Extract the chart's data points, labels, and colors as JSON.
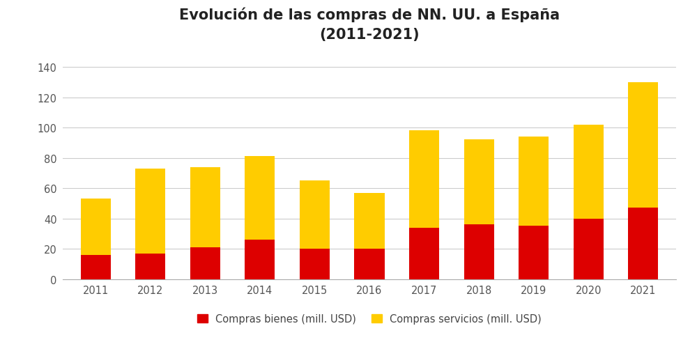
{
  "years": [
    2011,
    2012,
    2013,
    2014,
    2015,
    2016,
    2017,
    2018,
    2019,
    2020,
    2021
  ],
  "bienes": [
    16,
    17,
    21,
    26,
    20,
    20,
    34,
    36,
    35,
    40,
    47
  ],
  "servicios": [
    37,
    56,
    53,
    55,
    45,
    37,
    64,
    56,
    59,
    62,
    83
  ],
  "color_bienes": "#dd0000",
  "color_servicios": "#ffcc00",
  "title_line1": "Evolución de las compras de NN. UU. a España",
  "title_line2": "(2011-2021)",
  "legend_bienes": "Compras bienes (mill. USD)",
  "legend_servicios": "Compras servicios (mill. USD)",
  "ylim": [
    0,
    150
  ],
  "yticks": [
    0,
    20,
    40,
    60,
    80,
    100,
    120,
    140
  ],
  "background_color": "#ffffff",
  "grid_color": "#cccccc",
  "title_fontsize": 15,
  "tick_fontsize": 10.5,
  "legend_fontsize": 10.5,
  "bar_width": 0.55
}
